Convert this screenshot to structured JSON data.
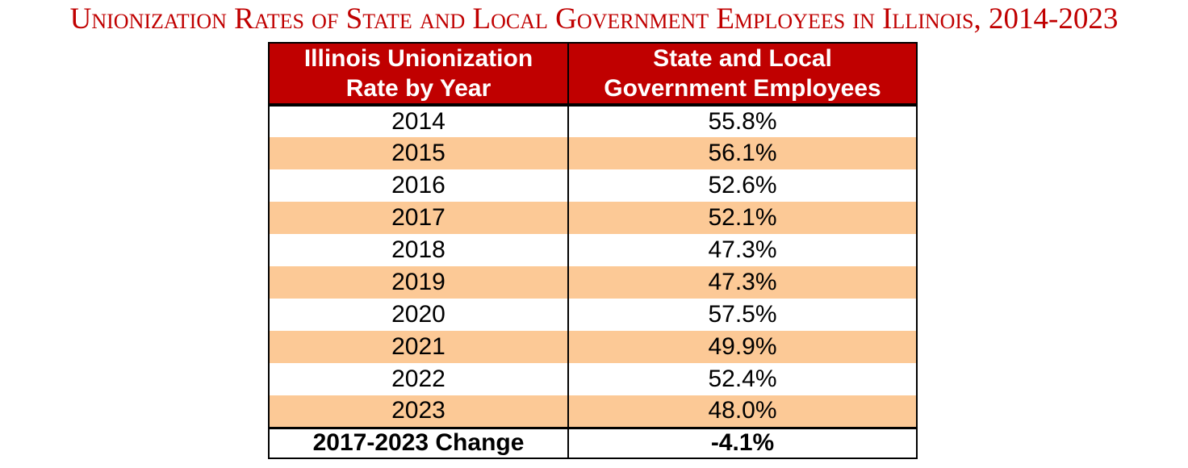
{
  "page": {
    "title": "Unionization Rates of State and Local Government Employees in Illinois, 2014-2023"
  },
  "table": {
    "header": [
      {
        "line1": "Illinois Unionization",
        "line2": "Rate by Year"
      },
      {
        "line1": "State and Local",
        "line2": "Government Employees"
      }
    ],
    "rows": [
      {
        "year": "2014",
        "value": "55.8%"
      },
      {
        "year": "2015",
        "value": "56.1%"
      },
      {
        "year": "2016",
        "value": "52.6%"
      },
      {
        "year": "2017",
        "value": "52.1%"
      },
      {
        "year": "2018",
        "value": "47.3%"
      },
      {
        "year": "2019",
        "value": "47.3%"
      },
      {
        "year": "2020",
        "value": "57.5%"
      },
      {
        "year": "2021",
        "value": "49.9%"
      },
      {
        "year": "2022",
        "value": "52.4%"
      },
      {
        "year": "2023",
        "value": "48.0%"
      }
    ],
    "footer": {
      "label": "2017-2023 Change",
      "value": "-4.1%"
    }
  },
  "colors": {
    "title_text": "#C00000",
    "header_bg": "#C00000",
    "header_text": "#FFFFFF",
    "row_alt_bg": "#FCC996",
    "row_bg": "#FFFFFF",
    "border": "#000000",
    "body_text": "#000000"
  },
  "chart_data": {
    "type": "table",
    "title": "Unionization Rates of State and Local Government Employees in Illinois, 2014-2023",
    "columns": [
      "Illinois Unionization Rate by Year",
      "State and Local Government Employees"
    ],
    "categories": [
      "2014",
      "2015",
      "2016",
      "2017",
      "2018",
      "2019",
      "2020",
      "2021",
      "2022",
      "2023"
    ],
    "values": [
      55.8,
      56.1,
      52.6,
      52.1,
      47.3,
      47.3,
      57.5,
      49.9,
      52.4,
      48.0
    ],
    "unit": "%",
    "summary_row": {
      "label": "2017-2023 Change",
      "value": -4.1
    },
    "layout": {
      "grid": false,
      "legend": false,
      "alternating_row_shading": true
    }
  }
}
